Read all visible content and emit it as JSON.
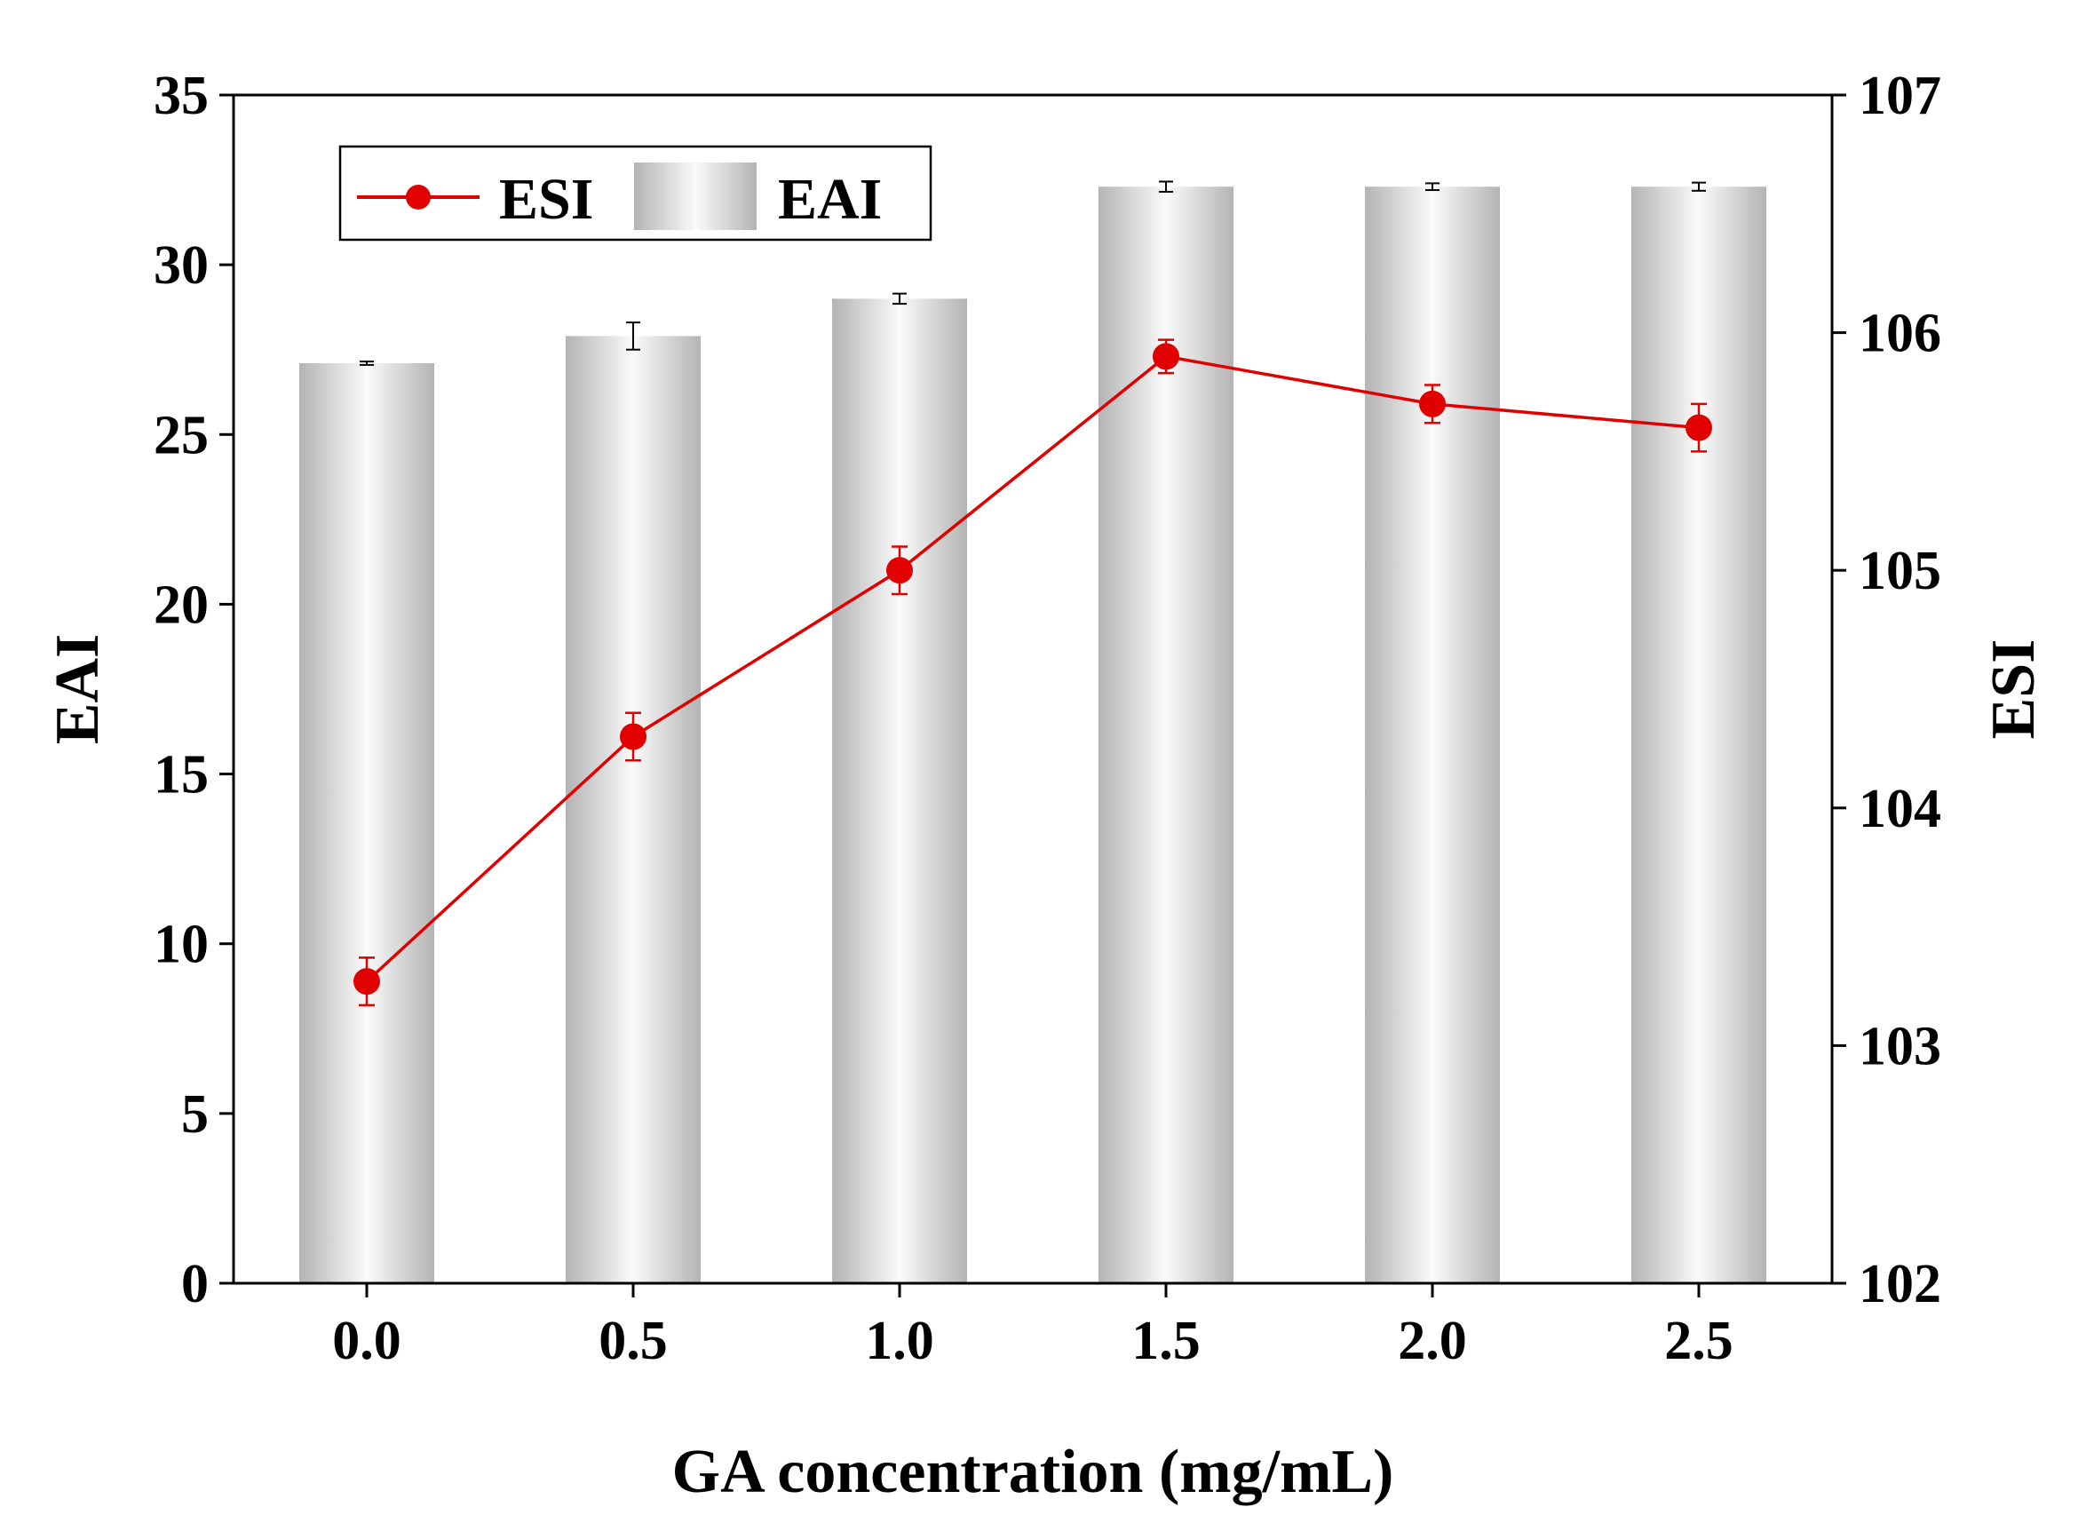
{
  "chart_data": {
    "type": "bar+line",
    "xlabel": "GA concentration (mg/mL)",
    "categories": [
      "0.0",
      "0.5",
      "1.0",
      "1.5",
      "2.0",
      "2.5"
    ],
    "series": [
      {
        "name": "EAI",
        "kind": "bar",
        "axis": "left",
        "values": [
          27.1,
          27.9,
          29.0,
          32.3,
          32.3,
          32.3
        ],
        "errors": [
          0.05,
          0.4,
          0.15,
          0.15,
          0.1,
          0.12
        ]
      },
      {
        "name": "ESI",
        "kind": "line",
        "axis": "right",
        "color": "#e00000",
        "values": [
          103.27,
          104.3,
          105.0,
          105.9,
          105.7,
          105.6
        ],
        "errors": [
          0.1,
          0.1,
          0.1,
          0.07,
          0.08,
          0.1
        ]
      }
    ],
    "left_axis": {
      "label": "EAI",
      "ylim": [
        0,
        35
      ],
      "ticks": [
        "0",
        "5",
        "10",
        "15",
        "20",
        "25",
        "30",
        "35"
      ]
    },
    "right_axis": {
      "label": "ESI",
      "ylim": [
        102,
        107
      ],
      "ticks": [
        "102",
        "103",
        "104",
        "105",
        "106",
        "107"
      ]
    },
    "legend": {
      "position": "top-left",
      "entries": [
        "ESI",
        "EAI"
      ]
    },
    "grid": false
  }
}
